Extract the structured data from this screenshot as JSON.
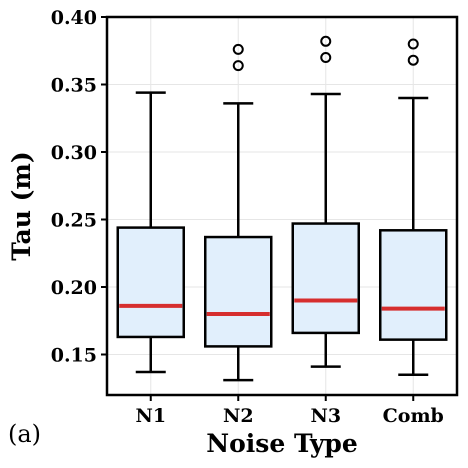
{
  "chart_data": {
    "type": "box",
    "panel_label": "(a)",
    "xlabel": "Noise Type",
    "ylabel": "Tau (m)",
    "categories": [
      "N1",
      "N2",
      "N3",
      "Comb"
    ],
    "ylim": [
      0.12,
      0.4
    ],
    "yticks": [
      0.15,
      0.2,
      0.25,
      0.3,
      0.35,
      0.4
    ],
    "ytick_labels": [
      "0.15",
      "0.20",
      "0.25",
      "0.30",
      "0.35",
      "0.40"
    ],
    "grid": true,
    "series": [
      {
        "category": "N1",
        "whisker_low": 0.137,
        "q1": 0.163,
        "median": 0.186,
        "q3": 0.244,
        "whisker_high": 0.344,
        "outliers": []
      },
      {
        "category": "N2",
        "whisker_low": 0.131,
        "q1": 0.156,
        "median": 0.18,
        "q3": 0.237,
        "whisker_high": 0.336,
        "outliers": [
          0.376,
          0.364
        ]
      },
      {
        "category": "N3",
        "whisker_low": 0.141,
        "q1": 0.166,
        "median": 0.19,
        "q3": 0.247,
        "whisker_high": 0.343,
        "outliers": [
          0.382,
          0.37
        ]
      },
      {
        "category": "Comb",
        "whisker_low": 0.135,
        "q1": 0.161,
        "median": 0.184,
        "q3": 0.242,
        "whisker_high": 0.34,
        "outliers": [
          0.38,
          0.368
        ]
      }
    ],
    "colors": {
      "box_fill": "#e1effc",
      "box_edge": "#000000",
      "median": "#d62e2e",
      "grid": "#e6e6e6"
    }
  }
}
